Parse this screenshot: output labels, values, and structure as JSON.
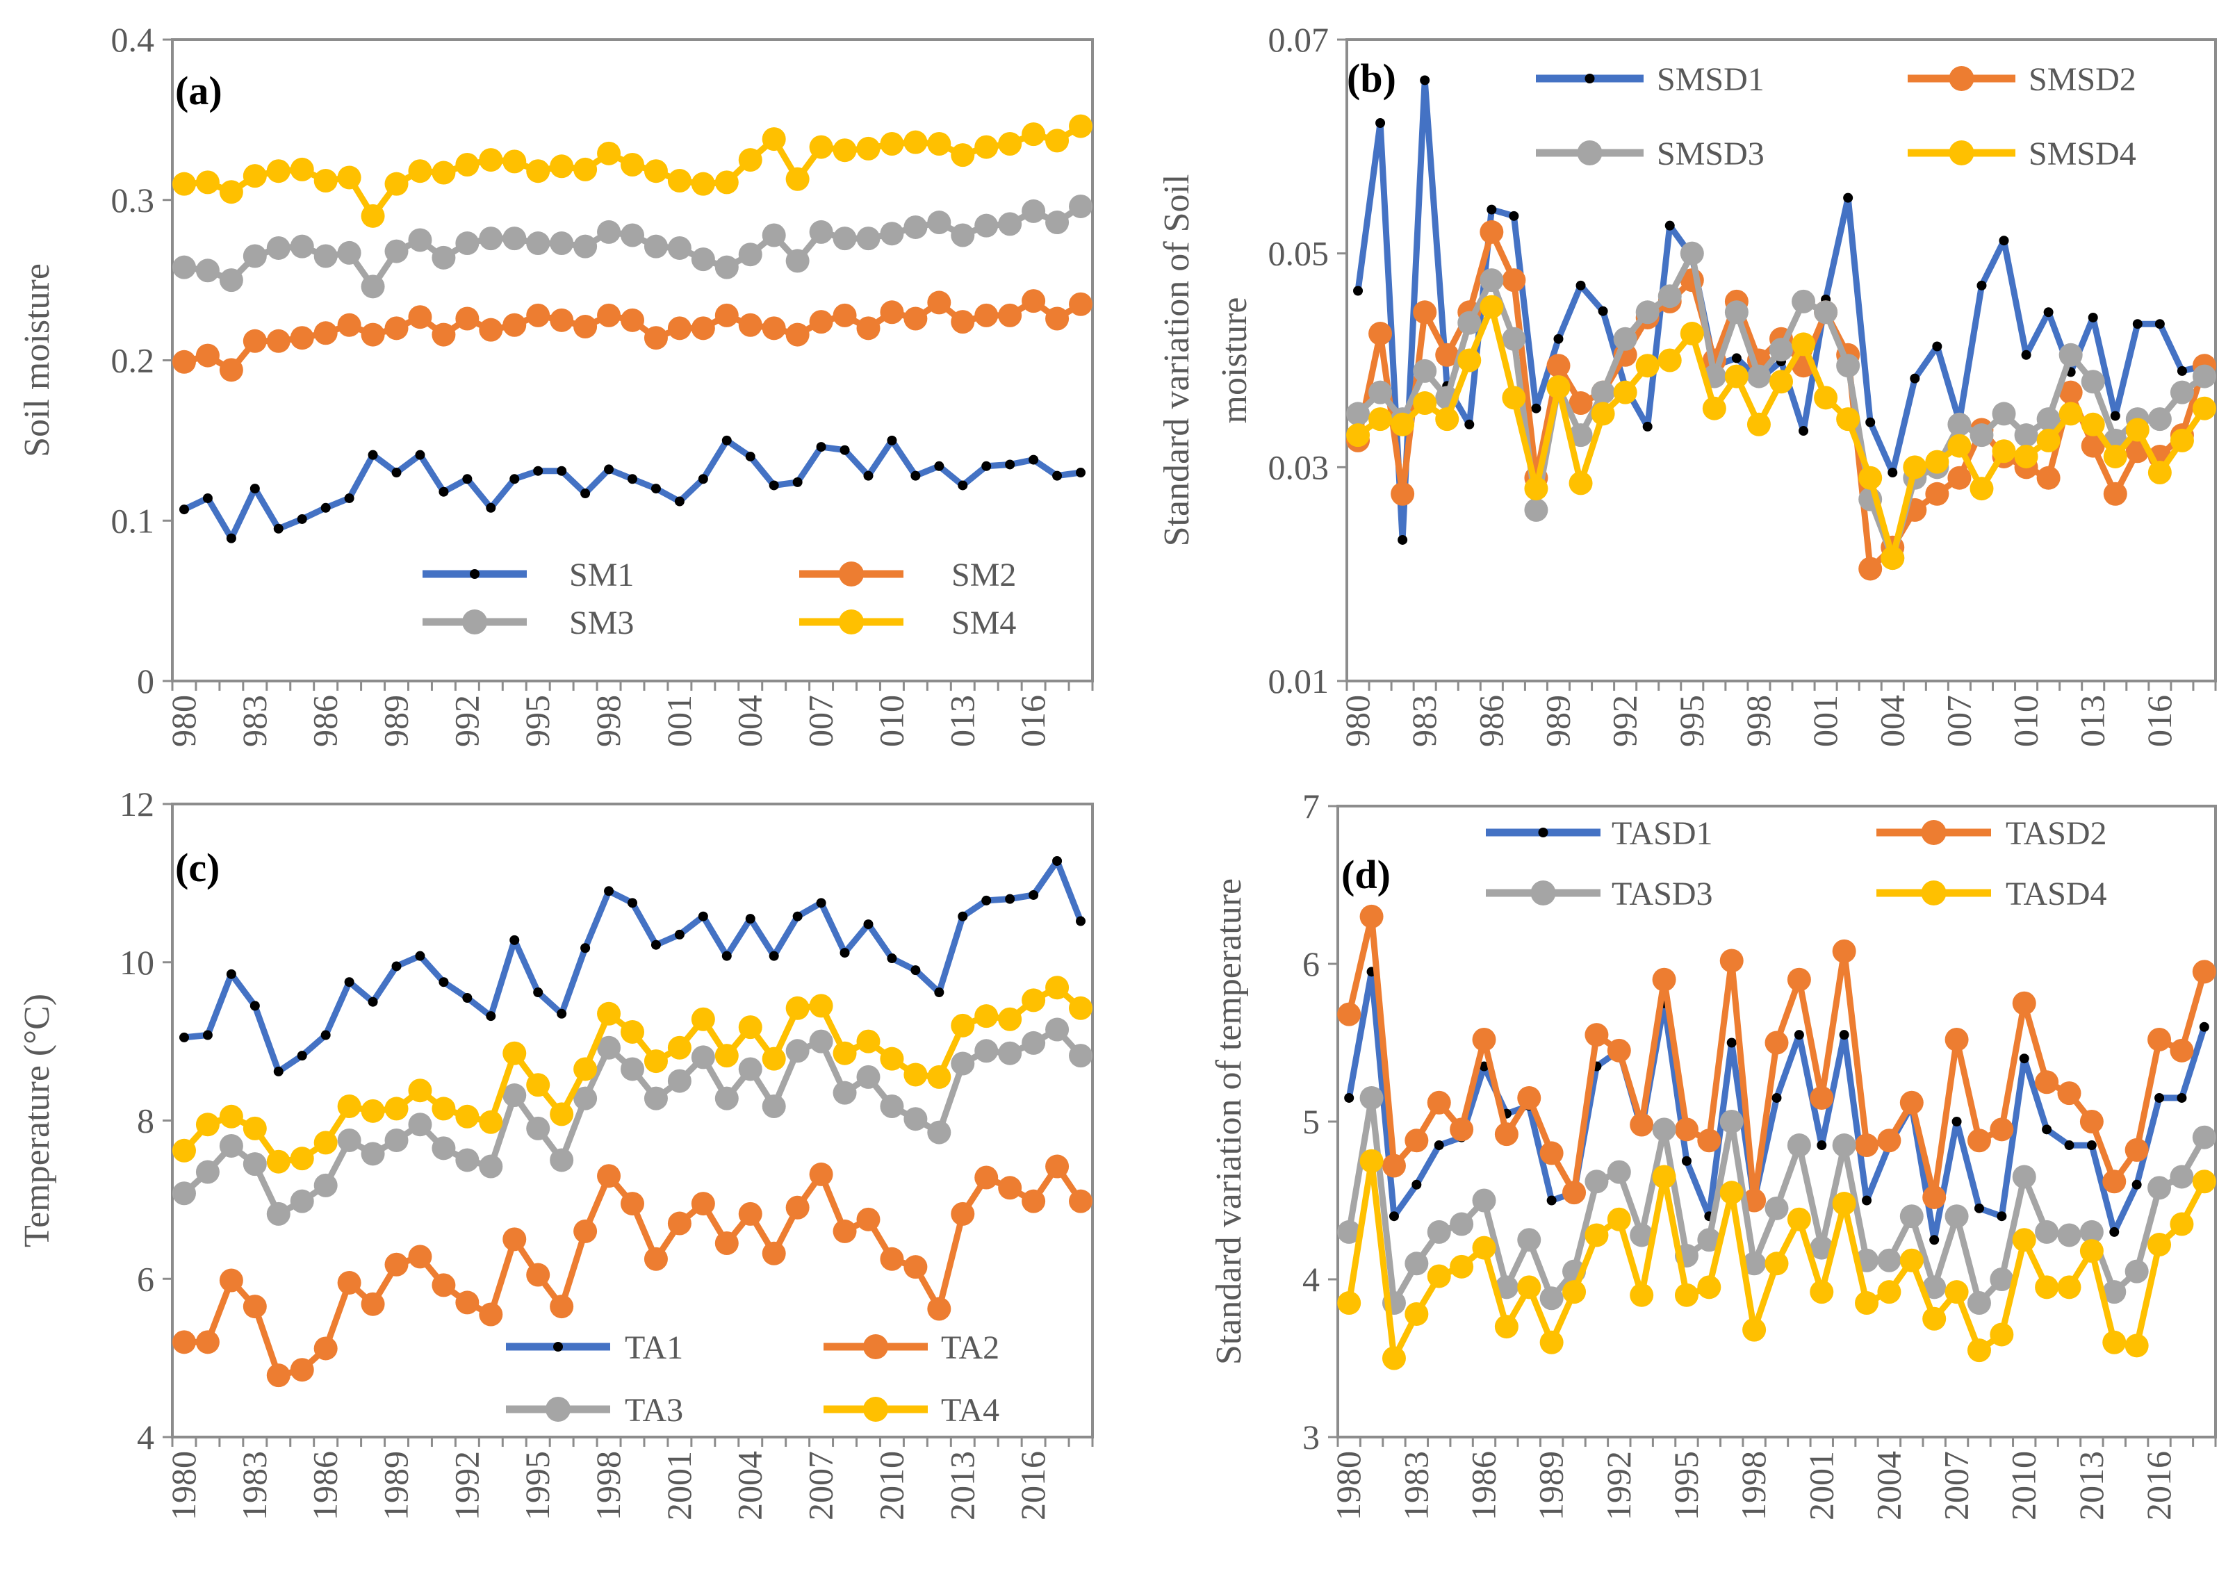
{
  "figure": {
    "years": [
      1980,
      1981,
      1982,
      1983,
      1984,
      1985,
      1986,
      1987,
      1988,
      1989,
      1990,
      1991,
      1992,
      1993,
      1994,
      1995,
      1996,
      1997,
      1998,
      1999,
      2000,
      2001,
      2002,
      2003,
      2004,
      2005,
      2006,
      2007,
      2008,
      2009,
      2010,
      2011,
      2012,
      2013,
      2014,
      2015,
      2016,
      2017,
      2018
    ]
  },
  "chart_data": [
    {
      "id": "a",
      "type": "line",
      "panel_label": "(a)",
      "ylabel": "Soil moisture",
      "xlabel": "",
      "ylim": [
        0,
        0.4
      ],
      "yticks": [
        0,
        0.1,
        0.2,
        0.3,
        0.4
      ],
      "ytick_labels": [
        "0",
        "0.1",
        "0.2",
        "0.3",
        "0.4"
      ],
      "xtick_labels": [
        "980",
        "983",
        "986",
        "989",
        "992",
        "995",
        "998",
        "001",
        "004",
        "007",
        "010",
        "013",
        "016"
      ],
      "legend_position": "bottom-center",
      "series": [
        {
          "name": "SM1",
          "color": "#4472C4",
          "marker": "dot",
          "values": [
            0.107,
            0.114,
            0.089,
            0.12,
            0.095,
            0.101,
            0.108,
            0.114,
            0.141,
            0.13,
            0.141,
            0.118,
            0.126,
            0.108,
            0.126,
            0.131,
            0.131,
            0.117,
            0.132,
            0.126,
            0.12,
            0.112,
            0.126,
            0.15,
            0.14,
            0.122,
            0.124,
            0.146,
            0.144,
            0.128,
            0.15,
            0.128,
            0.134,
            0.122,
            0.134,
            0.135,
            0.138,
            0.128,
            0.13
          ]
        },
        {
          "name": "SM2",
          "color": "#ED7D31",
          "marker": "circle",
          "values": [
            0.199,
            0.203,
            0.194,
            0.212,
            0.212,
            0.214,
            0.217,
            0.222,
            0.216,
            0.22,
            0.227,
            0.216,
            0.226,
            0.219,
            0.222,
            0.228,
            0.225,
            0.221,
            0.228,
            0.225,
            0.214,
            0.22,
            0.22,
            0.228,
            0.222,
            0.22,
            0.216,
            0.224,
            0.228,
            0.22,
            0.23,
            0.226,
            0.236,
            0.224,
            0.228,
            0.228,
            0.237,
            0.226,
            0.235
          ]
        },
        {
          "name": "SM3",
          "color": "#A5A5A5",
          "marker": "circle",
          "values": [
            0.258,
            0.256,
            0.25,
            0.265,
            0.27,
            0.271,
            0.265,
            0.267,
            0.246,
            0.268,
            0.275,
            0.264,
            0.273,
            0.276,
            0.276,
            0.273,
            0.273,
            0.271,
            0.28,
            0.278,
            0.271,
            0.27,
            0.263,
            0.258,
            0.266,
            0.278,
            0.262,
            0.28,
            0.276,
            0.276,
            0.279,
            0.283,
            0.286,
            0.278,
            0.284,
            0.285,
            0.293,
            0.286,
            0.296
          ]
        },
        {
          "name": "SM4",
          "color": "#FFC000",
          "marker": "circle",
          "values": [
            0.31,
            0.311,
            0.305,
            0.315,
            0.318,
            0.319,
            0.312,
            0.314,
            0.29,
            0.31,
            0.318,
            0.317,
            0.322,
            0.325,
            0.324,
            0.318,
            0.321,
            0.319,
            0.329,
            0.322,
            0.318,
            0.312,
            0.31,
            0.311,
            0.325,
            0.338,
            0.313,
            0.333,
            0.331,
            0.332,
            0.335,
            0.336,
            0.335,
            0.328,
            0.333,
            0.335,
            0.341,
            0.337,
            0.346
          ]
        }
      ]
    },
    {
      "id": "b",
      "type": "line",
      "panel_label": "(b)",
      "ylabel_lines": [
        "Standard variation of Soil",
        "moisture"
      ],
      "xlabel": "",
      "ylim": [
        0.01,
        0.07
      ],
      "yticks": [
        0.01,
        0.03,
        0.05,
        0.07
      ],
      "ytick_labels": [
        "0.01",
        "0.03",
        "0.05",
        "0.07"
      ],
      "xtick_labels": [
        "980",
        "983",
        "986",
        "989",
        "992",
        "995",
        "998",
        "001",
        "004",
        "007",
        "010",
        "013",
        "016"
      ],
      "legend_position": "top-right",
      "series": [
        {
          "name": "SMSD1",
          "color": "#4472C4",
          "marker": "dot",
          "values": [
            0.0465,
            0.0622,
            0.0232,
            0.0662,
            0.0376,
            0.034,
            0.0541,
            0.0535,
            0.0355,
            0.042,
            0.047,
            0.0446,
            0.0375,
            0.0338,
            0.0526,
            0.0497,
            0.0395,
            0.0402,
            0.0382,
            0.0399,
            0.0334,
            0.0457,
            0.0552,
            0.0342,
            0.0295,
            0.0383,
            0.0413,
            0.0343,
            0.047,
            0.0512,
            0.0405,
            0.0445,
            0.0389,
            0.044,
            0.0348,
            0.0434,
            0.0434,
            0.039,
            0.0395
          ]
        },
        {
          "name": "SMSD2",
          "color": "#ED7D31",
          "marker": "circle",
          "values": [
            0.0325,
            0.0425,
            0.0275,
            0.0445,
            0.0405,
            0.0445,
            0.052,
            0.0475,
            0.029,
            0.0395,
            0.036,
            0.037,
            0.0405,
            0.044,
            0.0455,
            0.0475,
            0.04,
            0.0455,
            0.04,
            0.042,
            0.0395,
            0.0445,
            0.0405,
            0.0205,
            0.0225,
            0.026,
            0.0275,
            0.029,
            0.0335,
            0.031,
            0.03,
            0.029,
            0.037,
            0.032,
            0.0275,
            0.0315,
            0.031,
            0.033,
            0.0395
          ]
        },
        {
          "name": "SMSD3",
          "color": "#A5A5A5",
          "marker": "circle",
          "values": [
            0.035,
            0.037,
            0.0345,
            0.039,
            0.0365,
            0.0435,
            0.0475,
            0.042,
            0.026,
            0.0375,
            0.033,
            0.037,
            0.042,
            0.0445,
            0.046,
            0.05,
            0.0385,
            0.0445,
            0.0385,
            0.041,
            0.0455,
            0.0445,
            0.0395,
            0.027,
            0.0215,
            0.029,
            0.03,
            0.034,
            0.033,
            0.035,
            0.033,
            0.0345,
            0.0405,
            0.038,
            0.0325,
            0.0345,
            0.0345,
            0.037,
            0.0385
          ]
        },
        {
          "name": "SMSD4",
          "color": "#FFC000",
          "marker": "circle",
          "values": [
            0.033,
            0.0345,
            0.034,
            0.036,
            0.0345,
            0.04,
            0.045,
            0.0365,
            0.028,
            0.0375,
            0.0285,
            0.035,
            0.037,
            0.0395,
            0.04,
            0.0425,
            0.0355,
            0.0385,
            0.034,
            0.038,
            0.0415,
            0.0365,
            0.0345,
            0.029,
            0.0215,
            0.03,
            0.0305,
            0.032,
            0.028,
            0.0315,
            0.031,
            0.0325,
            0.035,
            0.034,
            0.031,
            0.0335,
            0.0295,
            0.0325,
            0.0355
          ]
        }
      ]
    },
    {
      "id": "c",
      "type": "line",
      "panel_label": "(c)",
      "ylabel": "Temperature (°C)",
      "xlabel": "",
      "ylim": [
        4,
        12
      ],
      "yticks": [
        4,
        6,
        8,
        10,
        12
      ],
      "ytick_labels": [
        "4",
        "6",
        "8",
        "10",
        "12"
      ],
      "xtick_labels": [
        "1980",
        "1983",
        "1986",
        "1989",
        "1992",
        "1995",
        "1998",
        "2001",
        "2004",
        "2007",
        "2010",
        "2013",
        "2016"
      ],
      "legend_position": "bottom-right",
      "series": [
        {
          "name": "TA1",
          "color": "#4472C4",
          "marker": "dot",
          "values": [
            9.05,
            9.08,
            9.85,
            9.45,
            8.62,
            8.82,
            9.08,
            9.75,
            9.5,
            9.95,
            10.08,
            9.75,
            9.55,
            9.32,
            10.28,
            9.62,
            9.35,
            10.18,
            10.9,
            10.75,
            10.22,
            10.35,
            10.58,
            10.08,
            10.55,
            10.08,
            10.58,
            10.75,
            10.12,
            10.48,
            10.05,
            9.9,
            9.62,
            10.58,
            10.78,
            10.8,
            10.85,
            11.28,
            10.52
          ]
        },
        {
          "name": "TA2",
          "color": "#ED7D31",
          "marker": "circle",
          "values": [
            5.2,
            5.2,
            5.98,
            5.65,
            4.78,
            4.85,
            5.12,
            5.95,
            5.68,
            6.18,
            6.28,
            5.92,
            5.7,
            5.55,
            6.5,
            6.05,
            5.65,
            6.6,
            7.3,
            6.95,
            6.25,
            6.7,
            6.95,
            6.45,
            6.82,
            6.32,
            6.9,
            7.32,
            6.6,
            6.75,
            6.25,
            6.15,
            5.62,
            6.82,
            7.28,
            7.15,
            6.98,
            7.42,
            6.98
          ]
        },
        {
          "name": "TA3",
          "color": "#A5A5A5",
          "marker": "circle",
          "values": [
            7.08,
            7.35,
            7.68,
            7.45,
            6.82,
            6.98,
            7.18,
            7.75,
            7.58,
            7.75,
            7.95,
            7.65,
            7.5,
            7.42,
            8.32,
            7.9,
            7.5,
            8.28,
            8.92,
            8.65,
            8.28,
            8.5,
            8.8,
            8.28,
            8.65,
            8.18,
            8.88,
            9.0,
            8.35,
            8.55,
            8.18,
            8.02,
            7.85,
            8.72,
            8.88,
            8.85,
            8.98,
            9.15,
            8.82
          ]
        },
        {
          "name": "TA4",
          "color": "#FFC000",
          "marker": "circle",
          "values": [
            7.62,
            7.95,
            8.05,
            7.9,
            7.48,
            7.52,
            7.72,
            8.18,
            8.12,
            8.15,
            8.38,
            8.15,
            8.05,
            7.98,
            8.85,
            8.45,
            8.08,
            8.65,
            9.35,
            9.12,
            8.75,
            8.92,
            9.28,
            8.82,
            9.18,
            8.78,
            9.42,
            9.45,
            8.85,
            9.0,
            8.78,
            8.58,
            8.55,
            9.2,
            9.32,
            9.28,
            9.52,
            9.68,
            9.42
          ]
        }
      ]
    },
    {
      "id": "d",
      "type": "line",
      "panel_label": "(d)",
      "ylabel": "Standard variation of temperature",
      "xlabel": "",
      "ylim": [
        3,
        7
      ],
      "yticks": [
        3,
        4,
        5,
        6,
        7
      ],
      "ytick_labels": [
        "3",
        "4",
        "5",
        "6",
        "7"
      ],
      "xtick_labels": [
        "1980",
        "1983",
        "1986",
        "1989",
        "1992",
        "1995",
        "1998",
        "2001",
        "2004",
        "2007",
        "2010",
        "2013",
        "2016"
      ],
      "legend_position": "top-right",
      "series": [
        {
          "name": "TASD1",
          "color": "#4472C4",
          "marker": "dot",
          "values": [
            5.15,
            5.95,
            4.4,
            4.6,
            4.85,
            4.9,
            5.35,
            5.05,
            5.1,
            4.5,
            4.55,
            5.35,
            5.45,
            4.95,
            5.75,
            4.75,
            4.4,
            5.5,
            4.5,
            5.15,
            5.55,
            4.85,
            5.55,
            4.5,
            4.85,
            5.1,
            4.25,
            5.0,
            4.45,
            4.4,
            5.4,
            4.95,
            4.85,
            4.85,
            4.3,
            4.6,
            5.15,
            5.15,
            5.6
          ]
        },
        {
          "name": "TASD2",
          "color": "#ED7D31",
          "marker": "circle",
          "values": [
            5.68,
            6.3,
            4.72,
            4.88,
            5.12,
            4.95,
            5.52,
            4.92,
            5.15,
            4.8,
            4.55,
            5.55,
            5.45,
            4.98,
            5.9,
            4.95,
            4.88,
            6.02,
            4.5,
            5.5,
            5.9,
            5.15,
            6.08,
            4.85,
            4.88,
            5.12,
            4.52,
            5.52,
            4.88,
            4.95,
            5.75,
            5.25,
            5.18,
            5.0,
            4.62,
            4.82,
            5.52,
            5.45,
            5.95
          ]
        },
        {
          "name": "TASD3",
          "color": "#A5A5A5",
          "marker": "circle",
          "values": [
            4.3,
            5.15,
            3.85,
            4.1,
            4.3,
            4.35,
            4.5,
            3.95,
            4.25,
            3.88,
            4.05,
            4.62,
            4.68,
            4.28,
            4.95,
            4.15,
            4.25,
            5.0,
            4.1,
            4.45,
            4.85,
            4.2,
            4.85,
            4.12,
            4.12,
            4.4,
            3.95,
            4.4,
            3.85,
            4.0,
            4.65,
            4.3,
            4.28,
            4.3,
            3.92,
            4.05,
            4.58,
            4.65,
            4.9
          ]
        },
        {
          "name": "TASD4",
          "color": "#FFC000",
          "marker": "circle",
          "values": [
            3.85,
            4.75,
            3.5,
            3.78,
            4.02,
            4.08,
            4.2,
            3.7,
            3.95,
            3.6,
            3.92,
            4.28,
            4.38,
            3.9,
            4.65,
            3.9,
            3.95,
            4.55,
            3.68,
            4.1,
            4.38,
            3.92,
            4.48,
            3.85,
            3.92,
            4.12,
            3.75,
            3.92,
            3.55,
            3.65,
            4.25,
            3.95,
            3.95,
            4.18,
            3.6,
            3.58,
            4.22,
            4.35,
            4.62
          ]
        }
      ]
    }
  ]
}
